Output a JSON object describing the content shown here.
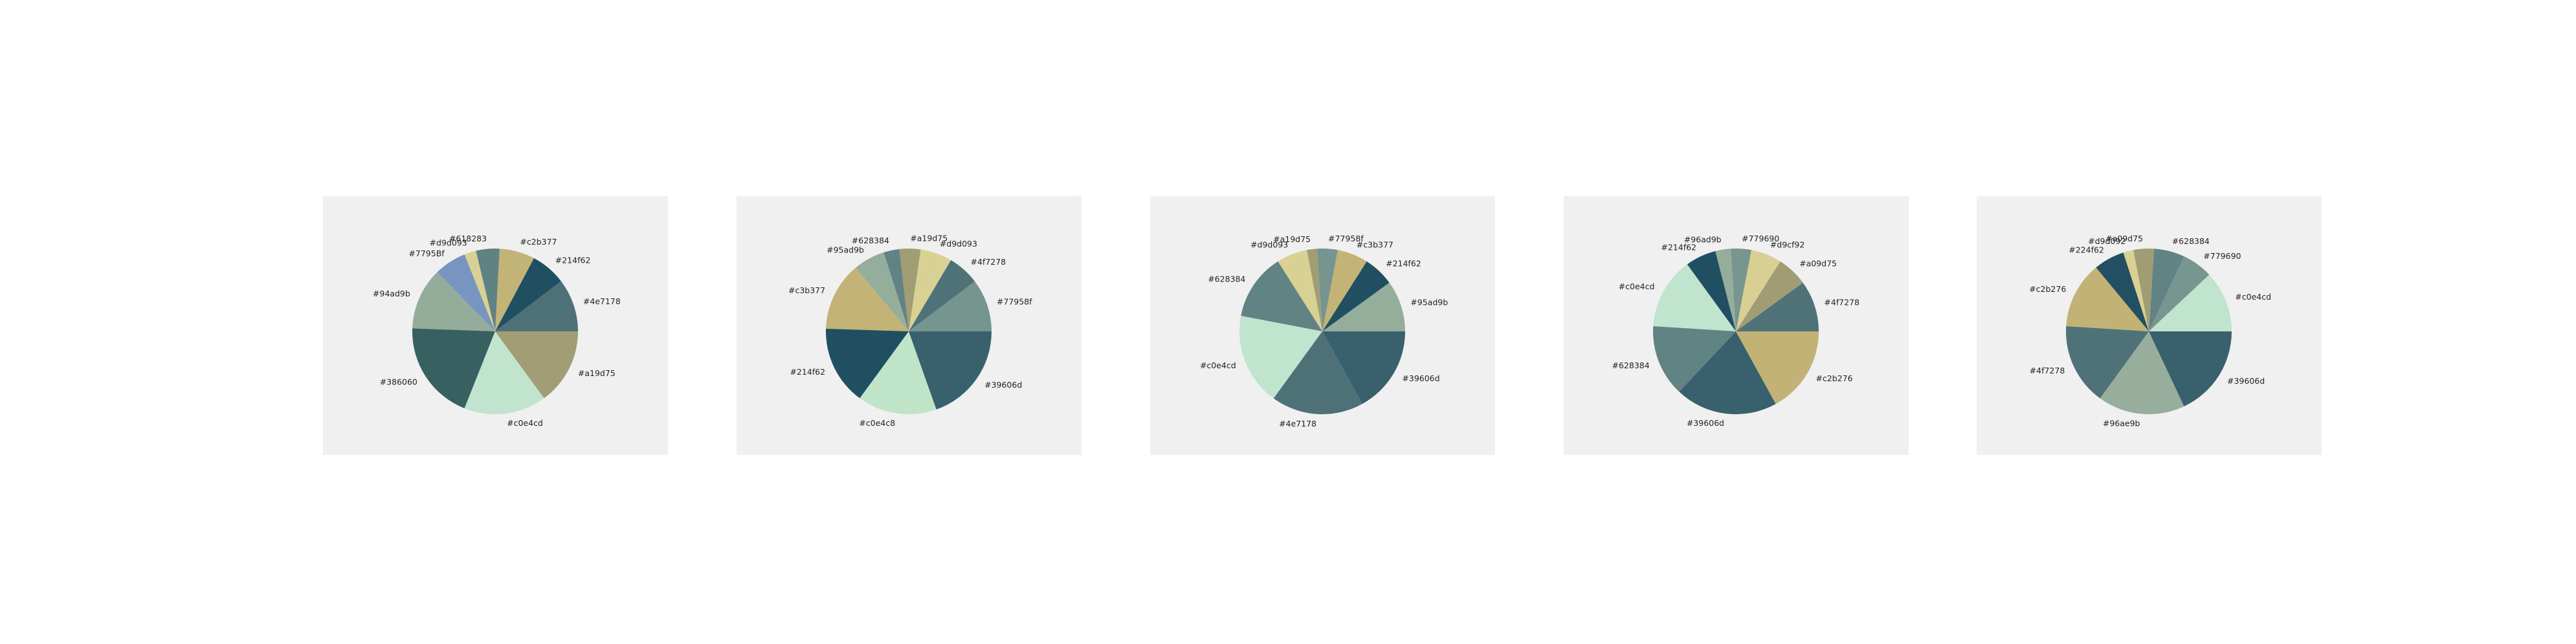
{
  "chart_data": [
    {
      "type": "pie",
      "title": "",
      "slices": [
        {
          "label": "#4e7178",
          "value": 9.0
        },
        {
          "label": "#214f62",
          "value": 6.0
        },
        {
          "label": "#c2b377",
          "value": 6.0
        },
        {
          "label": "#618283",
          "value": 4.0
        },
        {
          "label": "#d9d093",
          "value": 2.0
        },
        {
          "label": "#7795Bf",
          "value": 5.5
        },
        {
          "label": "#94ad9b",
          "value": 10.5
        },
        {
          "label": "#386060",
          "value": 17.0
        },
        {
          "label": "#c0e4cd",
          "value": 14.0
        },
        {
          "label": "#a19d75",
          "value": 13.0
        }
      ],
      "colors": [
        "#4e7178",
        "#214f62",
        "#c2b377",
        "#618283",
        "#d9d093",
        "#7795bf",
        "#94ad9b",
        "#386060",
        "#c0e4cd",
        "#a19d75"
      ]
    },
    {
      "type": "pie",
      "title": "",
      "slices": [
        {
          "label": "#77958f",
          "value": 10.0
        },
        {
          "label": "#4f7278",
          "value": 6.0
        },
        {
          "label": "#d9d093",
          "value": 6.0
        },
        {
          "label": "#a19d75",
          "value": 4.0
        },
        {
          "label": "#628384",
          "value": 3.0
        },
        {
          "label": "#95ad9b",
          "value": 6.0
        },
        {
          "label": "#c3b377",
          "value": 13.0
        },
        {
          "label": "#214f62",
          "value": 15.0
        },
        {
          "label": "#c0e4c8",
          "value": 15.0
        },
        {
          "label": "#39606d",
          "value": 19.0
        }
      ],
      "colors": [
        "#77958f",
        "#4f7278",
        "#d9d093",
        "#a19d75",
        "#628384",
        "#95ad9b",
        "#c3b377",
        "#214f62",
        "#c0e4c8",
        "#39606d"
      ]
    },
    {
      "type": "pie",
      "title": "",
      "slices": [
        {
          "label": "#95ad9b",
          "value": 10.0
        },
        {
          "label": "#214f62",
          "value": 6.0
        },
        {
          "label": "#c3b377",
          "value": 6.0
        },
        {
          "label": "#77958f",
          "value": 4.0
        },
        {
          "label": "#a19d75",
          "value": 2.0
        },
        {
          "label": "#d9d093",
          "value": 6.0
        },
        {
          "label": "#628384",
          "value": 13.0
        },
        {
          "label": "#c0e4cd",
          "value": 18.0
        },
        {
          "label": "#4e7178",
          "value": 18.0
        },
        {
          "label": "#39606d",
          "value": 17.0
        }
      ],
      "colors": [
        "#95ad9b",
        "#214f62",
        "#c3b377",
        "#77958f",
        "#a19d75",
        "#d9d093",
        "#628384",
        "#c0e4cd",
        "#4e7178",
        "#39606d"
      ]
    },
    {
      "type": "pie",
      "title": "",
      "slices": [
        {
          "label": "#4f7278",
          "value": 10.0
        },
        {
          "label": "#a09d75",
          "value": 6.0
        },
        {
          "label": "#d9cf92",
          "value": 6.0
        },
        {
          "label": "#779690",
          "value": 4.0
        },
        {
          "label": "#96ad9b",
          "value": 3.0
        },
        {
          "label": "#214f62",
          "value": 6.0
        },
        {
          "label": "#c0e4cd",
          "value": 14.0
        },
        {
          "label": "#628384",
          "value": 14.0
        },
        {
          "label": "#39606d",
          "value": 20.0
        },
        {
          "label": "#c2b276",
          "value": 17.0
        }
      ],
      "colors": [
        "#4f7278",
        "#a09d75",
        "#d9cf92",
        "#779690",
        "#96ad9b",
        "#214f62",
        "#c0e4cd",
        "#628384",
        "#39606d",
        "#c2b276"
      ]
    },
    {
      "type": "pie",
      "title": "",
      "slices": [
        {
          "label": "#c0e4cd",
          "value": 12.0
        },
        {
          "label": "#779690",
          "value": 6.0
        },
        {
          "label": "#628384",
          "value": 6.0
        },
        {
          "label": "#a09d75",
          "value": 4.0
        },
        {
          "label": "#d9d092",
          "value": 2.0
        },
        {
          "label": "#224f62",
          "value": 6.0
        },
        {
          "label": "#c2b276",
          "value": 13.0
        },
        {
          "label": "#4f7278",
          "value": 16.0
        },
        {
          "label": "#96ae9b",
          "value": 17.0
        },
        {
          "label": "#39606d",
          "value": 18.0
        }
      ],
      "colors": [
        "#c0e4cd",
        "#779690",
        "#628384",
        "#a09d75",
        "#d9d092",
        "#224f62",
        "#c2b276",
        "#4f7278",
        "#96ae9b",
        "#39606d"
      ]
    }
  ]
}
